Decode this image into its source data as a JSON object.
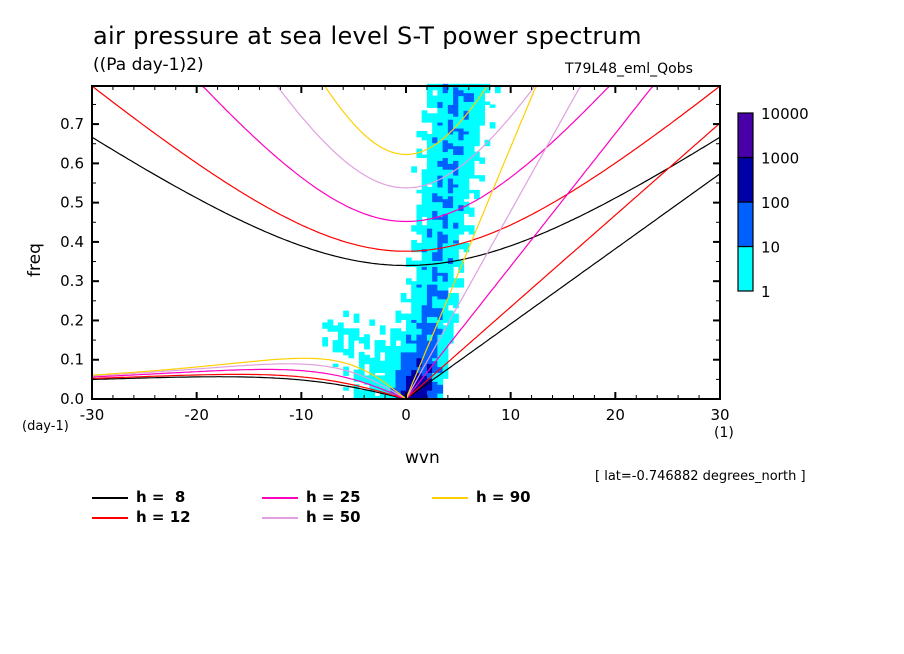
{
  "header": {
    "title": "air pressure at sea level S-T power spectrum",
    "units": "((Pa day-1)2)",
    "run_name": "T79L48_eml_Qobs",
    "lat_note": "[ lat=-0.746882 degrees_north ]"
  },
  "chart_data": {
    "type": "heatmap",
    "title": "air pressure at sea level S-T power spectrum",
    "xlabel": "wvn",
    "xunits": "(1)",
    "ylabel": "freq",
    "yunits": "(day-1)",
    "xlim": [
      -30,
      30
    ],
    "ylim": [
      0,
      0.797
    ],
    "xticks": [
      -30,
      -20,
      -10,
      0,
      10,
      20,
      30
    ],
    "xtick_labels": [
      "-30",
      "-20",
      "-10",
      "0",
      "10",
      "20",
      "30"
    ],
    "yticks": [
      0.0,
      0.1,
      0.2,
      0.3,
      0.4,
      0.5,
      0.6,
      0.7
    ],
    "ytick_labels": [
      "0.0",
      "0.1",
      "0.2",
      "0.3",
      "0.4",
      "0.5",
      "0.6",
      "0.7"
    ],
    "colorbar": {
      "levels": [
        1,
        10,
        100,
        1000,
        10000
      ],
      "labels": [
        "1",
        "10",
        "100",
        "1000",
        "10000"
      ],
      "colors": [
        "#00ffff",
        "#0060ff",
        "#0000a8",
        "#4800a8"
      ]
    },
    "power_regions": [
      {
        "level": 1,
        "note": "cyan band near wvn 0..6 spanning freq 0..0.8; broad patch wvn -11..8 at freq 0..0.26"
      },
      {
        "level": 10,
        "note": "blue core wvn -2..5, freq 0..0.33"
      },
      {
        "level": 100,
        "note": "dark blue near origin wvn 0..3, freq 0..0.1"
      }
    ],
    "dispersion_curves": {
      "equivalent_depths_m": [
        8,
        12,
        25,
        50,
        90
      ],
      "legend": [
        {
          "label": "h =  8",
          "color": "#000000"
        },
        {
          "label": "h = 12",
          "color": "#ff0000"
        },
        {
          "label": "h = 25",
          "color": "#ff00c0"
        },
        {
          "label": "h = 50",
          "color": "#e0a0e0"
        },
        {
          "label": "h = 90",
          "color": "#ffd000"
        }
      ]
    },
    "legend_position": "bottom-left"
  }
}
